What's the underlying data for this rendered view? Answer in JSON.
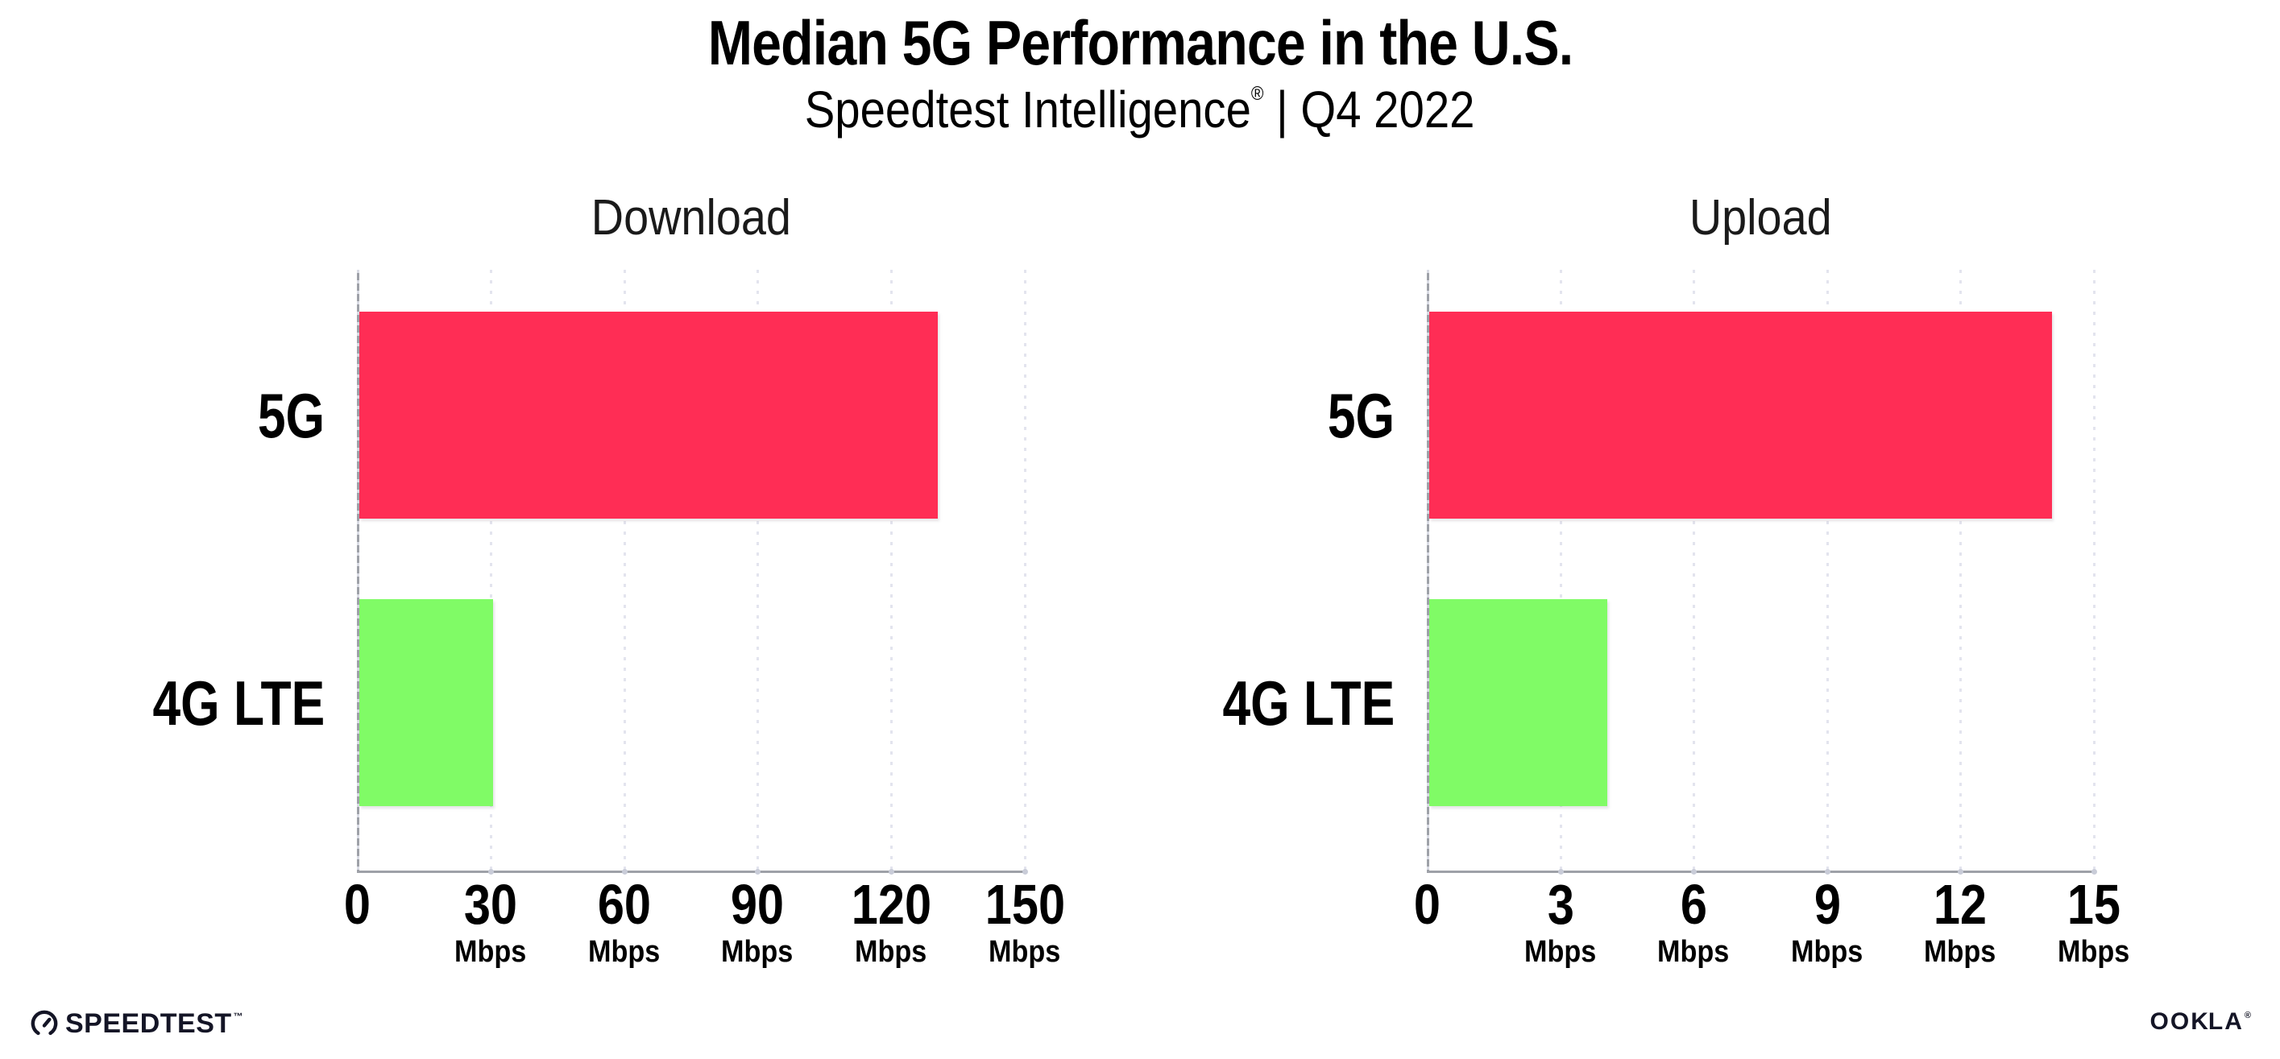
{
  "header": {
    "title": "Median 5G Performance in the U.S.",
    "subtitle_brand": "Speedtest Intelligence",
    "subtitle_reg": "®",
    "subtitle_rest": " | Q4 2022"
  },
  "footer": {
    "speedtest_label": "SPEEDTEST",
    "speedtest_mark": "™",
    "ookla_label_start": "OO",
    "ookla_label_k": "K",
    "ookla_label_end": "LA",
    "ookla_mark": "®"
  },
  "colors": {
    "bar_5g": "#FF2D55",
    "bar_4g_lte": "#80FB66",
    "axis": "#9ea1a8",
    "gridline": "#e3e4ee",
    "tick_dot": "#c9ccd8",
    "text": "#000000",
    "logo": "#141526"
  },
  "chart_data": [
    {
      "type": "bar",
      "orientation": "horizontal",
      "title": "Download",
      "categories": [
        "5G",
        "4G LTE"
      ],
      "values": [
        130,
        30
      ],
      "unit": "Mbps",
      "xlim": [
        0,
        150
      ],
      "ticks": [
        0,
        30,
        60,
        90,
        120,
        150
      ],
      "tick_unit_label": "Mbps",
      "bar_colors": [
        "#FF2D55",
        "#80FB66"
      ],
      "grid": "dotted-vertical",
      "legend": "none"
    },
    {
      "type": "bar",
      "orientation": "horizontal",
      "title": "Upload",
      "categories": [
        "5G",
        "4G LTE"
      ],
      "values": [
        14,
        4
      ],
      "unit": "Mbps",
      "xlim": [
        0,
        15
      ],
      "ticks": [
        0,
        3,
        6,
        9,
        12,
        15
      ],
      "tick_unit_label": "Mbps",
      "bar_colors": [
        "#FF2D55",
        "#80FB66"
      ],
      "grid": "dotted-vertical",
      "legend": "none"
    }
  ]
}
